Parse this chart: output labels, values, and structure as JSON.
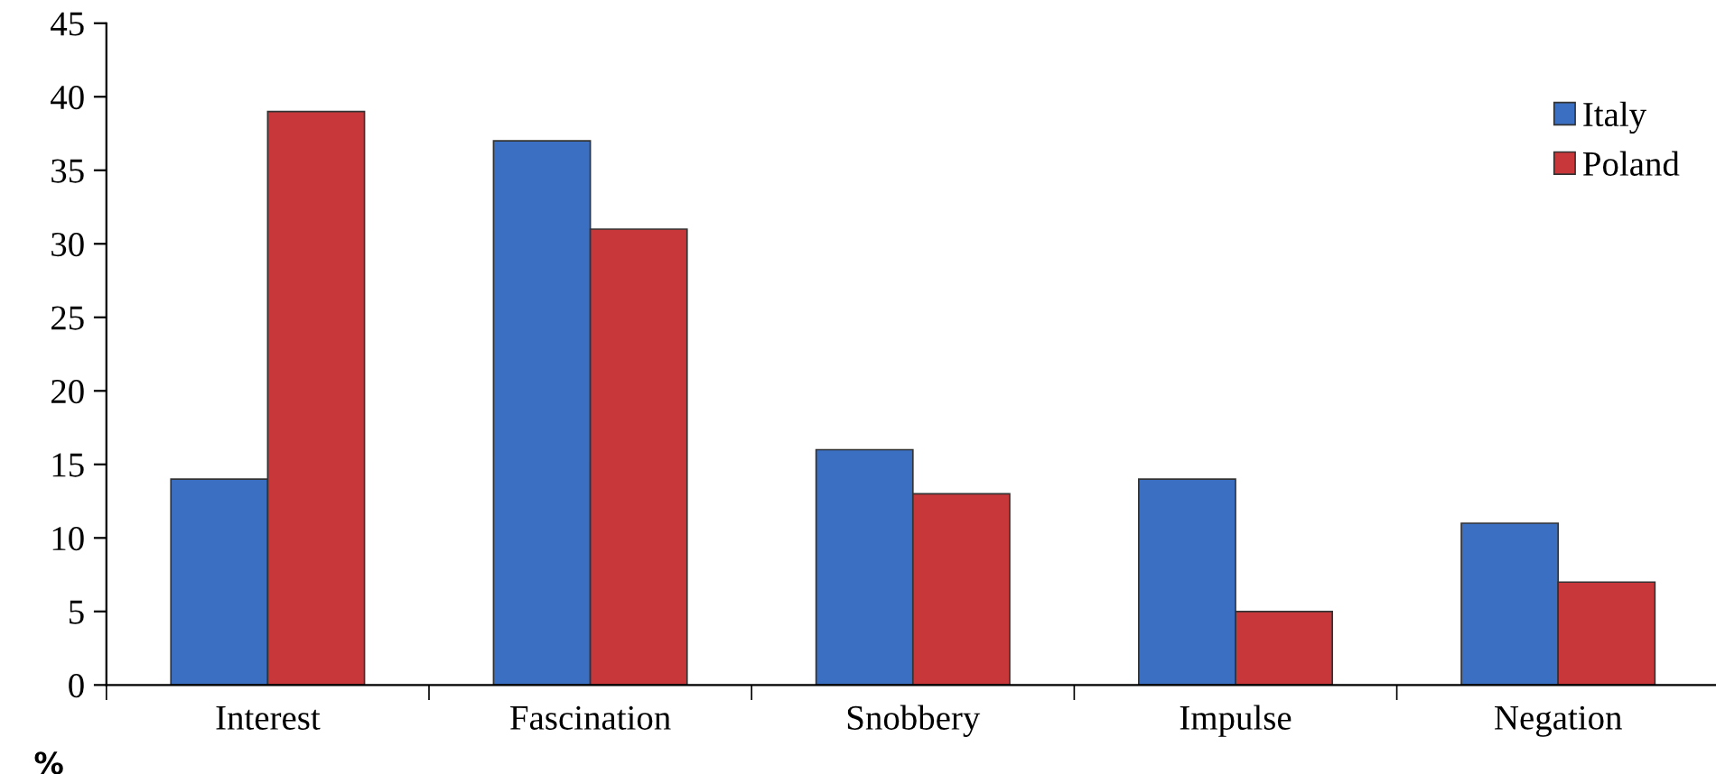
{
  "chart_data": {
    "type": "bar",
    "ylabel": "%",
    "categories": [
      "Interest",
      "Fascination",
      "Snobbery",
      "Impulse",
      "Negation"
    ],
    "series": [
      {
        "name": "Italy",
        "color": "#3b6fc2",
        "values": [
          14,
          37,
          16,
          14,
          11
        ]
      },
      {
        "name": "Poland",
        "color": "#c8383a",
        "values": [
          39,
          31,
          13,
          5,
          7
        ]
      }
    ],
    "ylim": [
      0,
      45
    ],
    "yticks": [
      0,
      5,
      10,
      15,
      20,
      25,
      30,
      35,
      40,
      45
    ],
    "grid": false,
    "legend": "right"
  }
}
